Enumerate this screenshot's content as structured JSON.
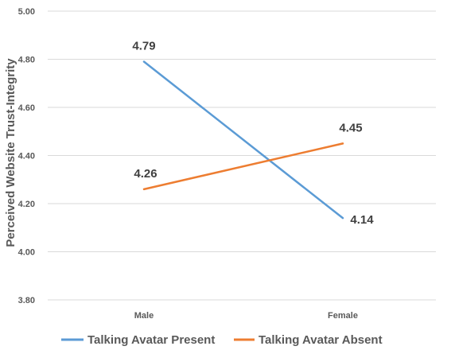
{
  "chart_data": {
    "type": "line",
    "title": "",
    "xlabel": "",
    "ylabel": "Perceived Website Trust-Integrity",
    "categories": [
      "Male",
      "Female"
    ],
    "ylim": [
      3.8,
      5.0
    ],
    "yticks": [
      "3.80",
      "4.00",
      "4.20",
      "4.40",
      "4.60",
      "4.80",
      "5.00"
    ],
    "grid": true,
    "legend_position": "bottom",
    "series": [
      {
        "name": "Talking Avatar Present",
        "values": [
          4.79,
          4.14
        ],
        "labels": [
          "4.79",
          "4.14"
        ],
        "color": "#5B9BD5"
      },
      {
        "name": "Talking Avatar Absent",
        "values": [
          4.26,
          4.45
        ],
        "labels": [
          "4.26",
          "4.45"
        ],
        "color": "#ED7D31"
      }
    ]
  }
}
